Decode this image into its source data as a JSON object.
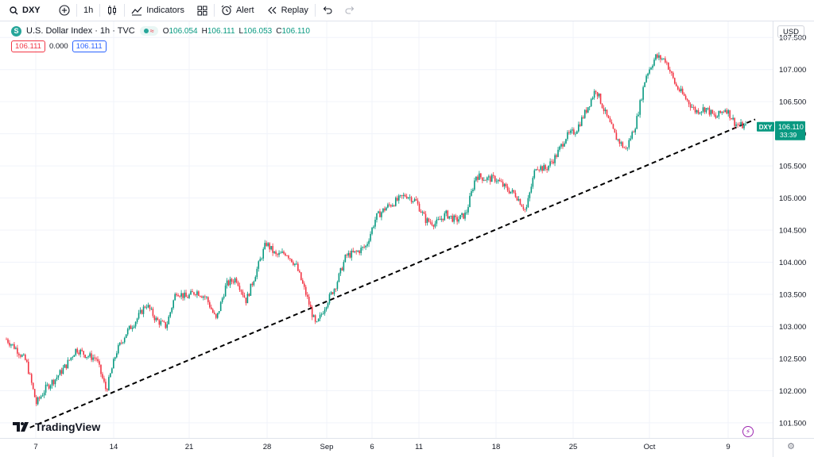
{
  "toolbar": {
    "symbol": "DXY",
    "interval": "1h",
    "indicators_label": "Indicators",
    "alert_label": "Alert",
    "replay_label": "Replay"
  },
  "legend": {
    "title": "U.S. Dollar Index · 1h · TVC",
    "symbol_initial": "S",
    "open_key": "O",
    "open": "106.054",
    "high_key": "H",
    "high": "106.111",
    "low_key": "L",
    "low": "106.053",
    "close_key": "C",
    "close": "106.110",
    "bid": "106.111",
    "spread": "0.000",
    "ask": "106.111"
  },
  "currency": "USD",
  "branding": {
    "logo_text": "TradingView"
  },
  "colors": {
    "up": "#089981",
    "down": "#f23645",
    "trendline": "#000000",
    "grid": "#f0f3fa"
  },
  "chart_data": {
    "type": "line",
    "series_style": "candlestick",
    "ylim": [
      101.3,
      107.75
    ],
    "yticks": [
      "101.500",
      "102.000",
      "102.500",
      "103.000",
      "103.500",
      "104.000",
      "104.500",
      "105.000",
      "105.500",
      "106.000",
      "106.500",
      "107.000",
      "107.500"
    ],
    "xticks": [
      "7",
      "14",
      "21",
      "28",
      "Sep",
      "6",
      "11",
      "18",
      "25",
      "Oct",
      "9"
    ],
    "price_tag": {
      "symbol": "DXY",
      "value": "106.110",
      "countdown": "33:39"
    },
    "price_path": [
      {
        "x": 0.0,
        "y": 102.8
      },
      {
        "x": 1.0,
        "y": 102.65
      },
      {
        "x": 2.0,
        "y": 102.45
      },
      {
        "x": 3.0,
        "y": 101.8
      },
      {
        "x": 4.0,
        "y": 102.05
      },
      {
        "x": 5.0,
        "y": 102.2
      },
      {
        "x": 6.0,
        "y": 102.4
      },
      {
        "x": 7.0,
        "y": 102.65
      },
      {
        "x": 8.0,
        "y": 102.55
      },
      {
        "x": 9.0,
        "y": 102.5
      },
      {
        "x": 10.0,
        "y": 102.0
      },
      {
        "x": 11.0,
        "y": 102.6
      },
      {
        "x": 12.0,
        "y": 102.9
      },
      {
        "x": 13.0,
        "y": 103.1
      },
      {
        "x": 14.0,
        "y": 103.35
      },
      {
        "x": 15.0,
        "y": 103.1
      },
      {
        "x": 16.0,
        "y": 103.0
      },
      {
        "x": 17.0,
        "y": 103.55
      },
      {
        "x": 18.0,
        "y": 103.45
      },
      {
        "x": 19.0,
        "y": 103.55
      },
      {
        "x": 20.0,
        "y": 103.45
      },
      {
        "x": 21.0,
        "y": 103.1
      },
      {
        "x": 22.0,
        "y": 103.65
      },
      {
        "x": 23.0,
        "y": 103.75
      },
      {
        "x": 24.0,
        "y": 103.4
      },
      {
        "x": 25.0,
        "y": 103.85
      },
      {
        "x": 26.0,
        "y": 104.3
      },
      {
        "x": 27.0,
        "y": 104.1
      },
      {
        "x": 28.0,
        "y": 104.15
      },
      {
        "x": 29.0,
        "y": 103.95
      },
      {
        "x": 30.0,
        "y": 103.5
      },
      {
        "x": 31.0,
        "y": 103.0
      },
      {
        "x": 32.0,
        "y": 103.35
      },
      {
        "x": 33.0,
        "y": 103.65
      },
      {
        "x": 34.0,
        "y": 104.1
      },
      {
        "x": 35.0,
        "y": 104.15
      },
      {
        "x": 36.0,
        "y": 104.25
      },
      {
        "x": 37.0,
        "y": 104.7
      },
      {
        "x": 38.0,
        "y": 104.85
      },
      {
        "x": 39.0,
        "y": 104.95
      },
      {
        "x": 40.0,
        "y": 105.05
      },
      {
        "x": 41.0,
        "y": 104.95
      },
      {
        "x": 42.0,
        "y": 104.65
      },
      {
        "x": 43.0,
        "y": 104.6
      },
      {
        "x": 44.0,
        "y": 104.75
      },
      {
        "x": 45.0,
        "y": 104.65
      },
      {
        "x": 46.0,
        "y": 104.75
      },
      {
        "x": 47.0,
        "y": 105.35
      },
      {
        "x": 48.0,
        "y": 105.3
      },
      {
        "x": 49.0,
        "y": 105.3
      },
      {
        "x": 50.0,
        "y": 105.15
      },
      {
        "x": 51.0,
        "y": 105.05
      },
      {
        "x": 52.0,
        "y": 104.8
      },
      {
        "x": 53.0,
        "y": 105.5
      },
      {
        "x": 54.0,
        "y": 105.45
      },
      {
        "x": 55.0,
        "y": 105.65
      },
      {
        "x": 56.0,
        "y": 105.95
      },
      {
        "x": 57.0,
        "y": 106.05
      },
      {
        "x": 58.0,
        "y": 106.35
      },
      {
        "x": 59.0,
        "y": 106.7
      },
      {
        "x": 60.0,
        "y": 106.3
      },
      {
        "x": 61.0,
        "y": 105.95
      },
      {
        "x": 62.0,
        "y": 105.75
      },
      {
        "x": 63.0,
        "y": 106.15
      },
      {
        "x": 64.0,
        "y": 106.9
      },
      {
        "x": 65.0,
        "y": 107.2
      },
      {
        "x": 66.0,
        "y": 107.15
      },
      {
        "x": 67.0,
        "y": 106.75
      },
      {
        "x": 68.0,
        "y": 106.55
      },
      {
        "x": 69.0,
        "y": 106.35
      },
      {
        "x": 70.0,
        "y": 106.4
      },
      {
        "x": 71.0,
        "y": 106.25
      },
      {
        "x": 72.0,
        "y": 106.4
      },
      {
        "x": 73.0,
        "y": 106.15
      },
      {
        "x": 74.0,
        "y": 106.11
      }
    ],
    "trendline": {
      "from": {
        "x": 3.0,
        "y": 101.45
      },
      "to": {
        "x": 74.0,
        "y": 106.2
      }
    }
  }
}
